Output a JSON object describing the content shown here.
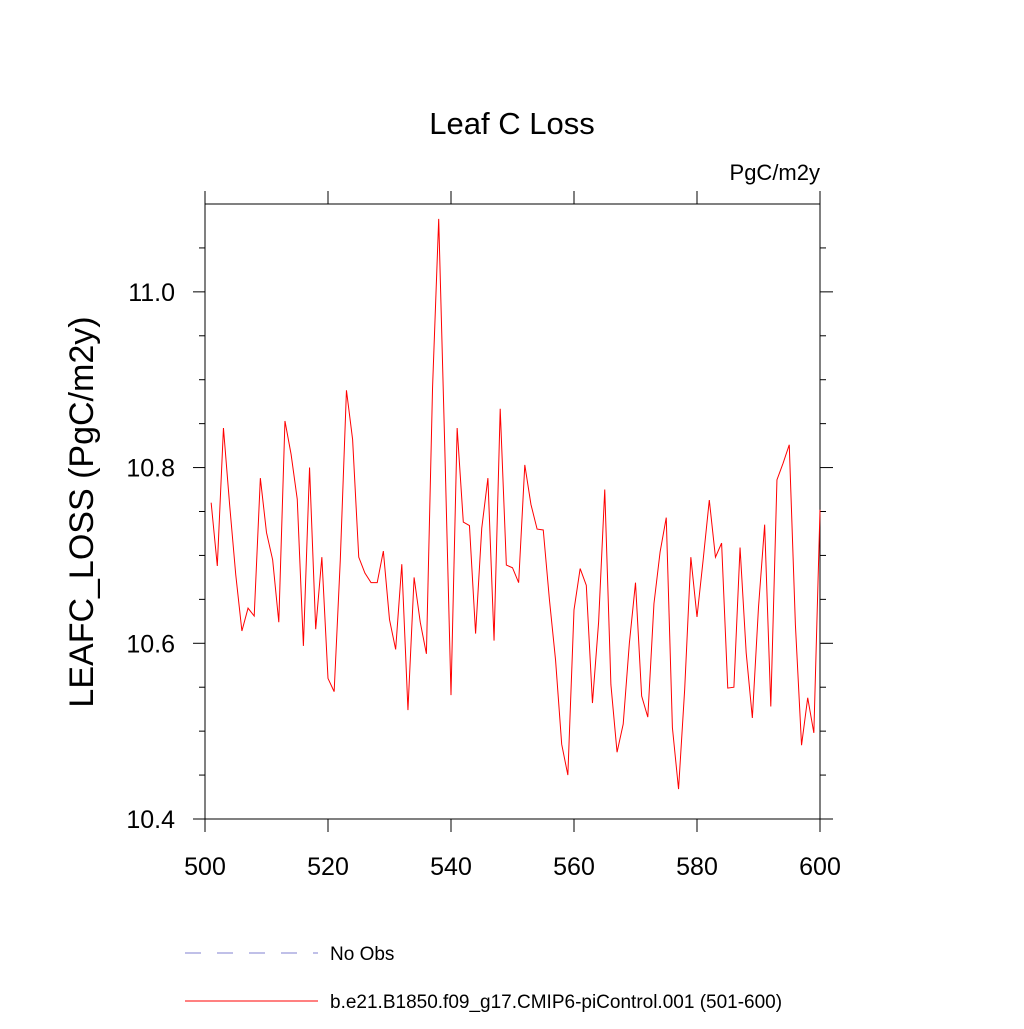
{
  "chart_data": {
    "type": "line",
    "title": "Leaf C Loss",
    "subtitle": "PgC/m2y",
    "y_label": "LEAFC_LOSS  (PgC/m2y)",
    "x": [
      501,
      502,
      503,
      504,
      505,
      506,
      507,
      508,
      509,
      510,
      511,
      512,
      513,
      514,
      515,
      516,
      517,
      518,
      519,
      520,
      521,
      522,
      523,
      524,
      525,
      526,
      527,
      528,
      529,
      530,
      531,
      532,
      533,
      534,
      535,
      536,
      537,
      538,
      539,
      540,
      541,
      542,
      543,
      544,
      545,
      546,
      547,
      548,
      549,
      550,
      551,
      552,
      553,
      554,
      555,
      556,
      557,
      558,
      559,
      560,
      561,
      562,
      563,
      564,
      565,
      566,
      567,
      568,
      569,
      570,
      571,
      572,
      573,
      574,
      575,
      576,
      577,
      578,
      579,
      580,
      581,
      582,
      583,
      584,
      585,
      586,
      587,
      588,
      589,
      590,
      591,
      592,
      593,
      594,
      595,
      596,
      597,
      598,
      599,
      600
    ],
    "series": [
      {
        "name": "b.e21.B1850.f09_g17.CMIP6-piControl.001 (501-600)",
        "color": "#ff0000",
        "values": [
          10.76,
          10.688,
          10.845,
          10.758,
          10.678,
          10.614,
          10.64,
          10.631,
          10.788,
          10.726,
          10.695,
          10.624,
          10.853,
          10.815,
          10.764,
          10.597,
          10.8,
          10.616,
          10.698,
          10.56,
          10.545,
          10.695,
          10.888,
          10.832,
          10.698,
          10.68,
          10.669,
          10.669,
          10.705,
          10.627,
          10.593,
          10.69,
          10.524,
          10.675,
          10.624,
          10.588,
          10.891,
          11.083,
          10.82,
          10.541,
          10.845,
          10.738,
          10.734,
          10.611,
          10.731,
          10.788,
          10.603,
          10.867,
          10.689,
          10.686,
          10.669,
          10.803,
          10.758,
          10.73,
          10.729,
          10.65,
          10.581,
          10.485,
          10.45,
          10.638,
          10.685,
          10.666,
          10.532,
          10.624,
          10.775,
          10.553,
          10.476,
          10.508,
          10.6,
          10.669,
          10.54,
          10.516,
          10.645,
          10.704,
          10.743,
          10.504,
          10.434,
          10.548,
          10.698,
          10.63,
          10.695,
          10.763,
          10.698,
          10.714,
          10.549,
          10.55,
          10.709,
          10.589,
          10.515,
          10.641,
          10.735,
          10.528,
          10.786,
          10.805,
          10.826,
          10.621,
          10.484,
          10.538,
          10.498,
          10.752
        ]
      }
    ],
    "legend": [
      {
        "name": "No Obs",
        "color": "#8080d0",
        "dashed": true
      }
    ],
    "xlim": [
      500,
      600
    ],
    "xticks": [
      500,
      520,
      540,
      560,
      580,
      600
    ],
    "ylim": [
      10.4,
      11.1
    ],
    "yticks": [
      10.4,
      10.6,
      10.8,
      {
        "value": 11,
        "label": "11.0"
      }
    ],
    "yminorticks": [
      10.45,
      10.5,
      10.55,
      10.65,
      10.7,
      10.75,
      10.85,
      10.9,
      10.95,
      11.05
    ]
  }
}
